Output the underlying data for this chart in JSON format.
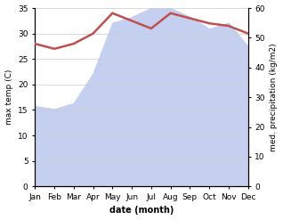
{
  "months": [
    "Jan",
    "Feb",
    "Mar",
    "Apr",
    "May",
    "Jun",
    "Jul",
    "Aug",
    "Sep",
    "Oct",
    "Nov",
    "Dec"
  ],
  "x": [
    0,
    1,
    2,
    3,
    4,
    5,
    6,
    7,
    8,
    9,
    10,
    11
  ],
  "temp": [
    28.0,
    27.0,
    28.0,
    30.0,
    34.0,
    32.5,
    31.0,
    34.0,
    33.0,
    32.0,
    31.5,
    30.0
  ],
  "precip": [
    27,
    26,
    28,
    38,
    55,
    57,
    60,
    60,
    57,
    53,
    55,
    47
  ],
  "temp_color": "#c0504d",
  "precip_fill_color": "#c5d0f0",
  "ylabel_left": "max temp (C)",
  "ylabel_right": "med. precipitation (kg/m2)",
  "xlabel": "date (month)",
  "ylim_left": [
    0,
    35
  ],
  "ylim_right": [
    0,
    60
  ],
  "yticks_left": [
    0,
    5,
    10,
    15,
    20,
    25,
    30,
    35
  ],
  "yticks_right": [
    0,
    10,
    20,
    30,
    40,
    50,
    60
  ],
  "bg_color": "#ffffff"
}
